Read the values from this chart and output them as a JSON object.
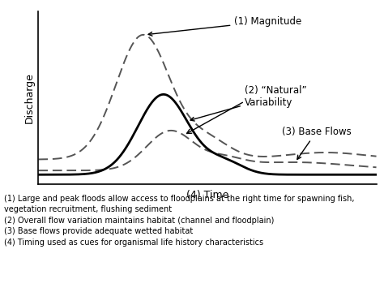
{
  "title": "",
  "xlabel": "(4) Time",
  "ylabel": "Discharge",
  "background_color": "#ffffff",
  "annotation1": "(1) Magnitude",
  "annotation2": "(2) “Natural”\nVariability",
  "annotation3": "(3) Base Flows",
  "caption_lines": [
    "(1) Large and peak floods allow access to floodplains at the right time for spawning fish,",
    "vegetation recruitment, flushing sediment",
    "(2) Overall flow variation maintains habitat (channel and floodplain)",
    "(3) Base flows provide adequate wetted habitat",
    "(4) Timing used as cues for organismal life history characteristics"
  ],
  "solid_line_color": "#000000",
  "dashed_line_color": "#555555",
  "solid_lw": 2.0,
  "dashed_lw": 1.4,
  "font_size_caption": 7.0,
  "font_size_label": 9,
  "font_size_annot": 8.5
}
